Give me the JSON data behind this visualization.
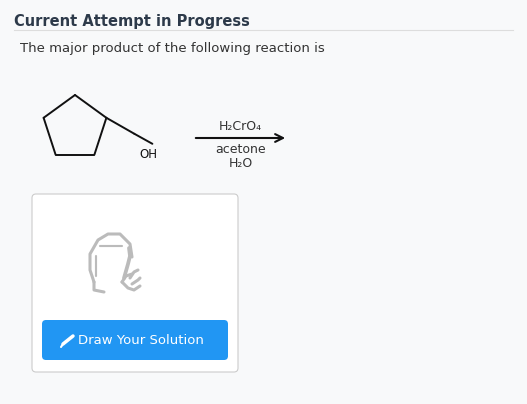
{
  "title": "Current Attempt in Progress",
  "subtitle": "The major product of the following reaction is",
  "reagent_top": "H₂CrO₄",
  "reagent_bottom1": "acetone",
  "reagent_bottom2": "H₂O",
  "oh_label": "OH",
  "button_text": "Draw Your Solution",
  "bg_color": "#f8f9fa",
  "title_color": "#2d3a4a",
  "text_color": "#333333",
  "arrow_color": "#111111",
  "button_color": "#2196F3",
  "button_text_color": "#ffffff",
  "box_color": "#ffffff",
  "box_border": "#cccccc",
  "molecule_color": "#111111",
  "divider_color": "#dddddd",
  "icon_color": "#bbbbbb"
}
